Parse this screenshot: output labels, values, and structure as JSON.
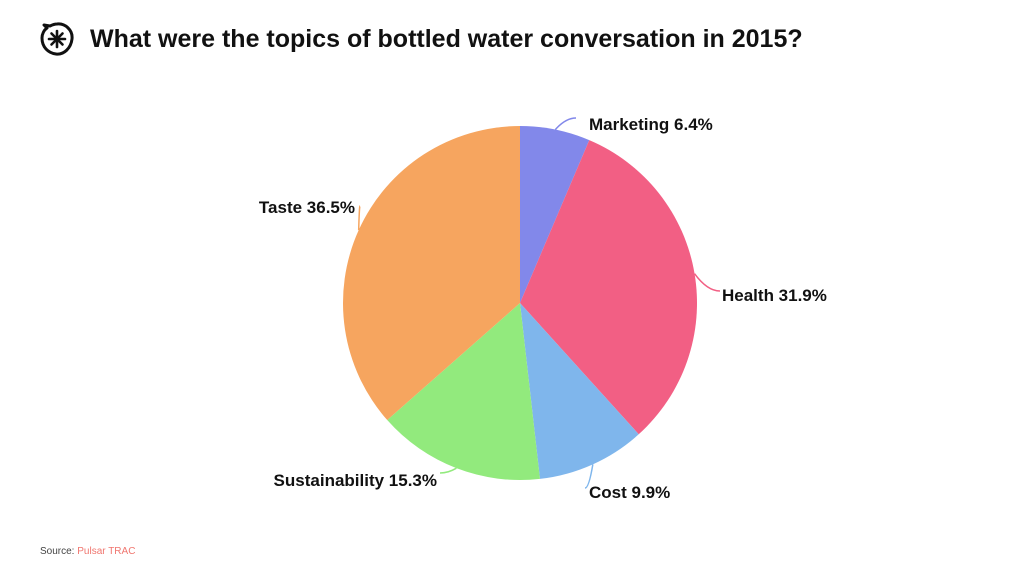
{
  "header": {
    "title": "What were the topics of bottled water conversation in 2015?",
    "logo_icon": "asterisk-badge-icon"
  },
  "footer": {
    "source_prefix": "Source: ",
    "source_name": "Pulsar TRAC"
  },
  "colors": {
    "marketing": "#8288ea",
    "health": "#f25f84",
    "cost": "#7fb6ec",
    "sustainability": "#92ea7d",
    "taste": "#f6a55f",
    "source_link": "#f0766f"
  },
  "chart_data": {
    "type": "pie",
    "title": "What were the topics of bottled water conversation in 2015?",
    "start": "12 o'clock, clockwise",
    "slices": [
      {
        "name": "Marketing",
        "value": 6.4,
        "label": "Marketing 6.4%",
        "color": "#8288ea"
      },
      {
        "name": "Health",
        "value": 31.9,
        "label": "Health 31.9%",
        "color": "#f25f84"
      },
      {
        "name": "Cost",
        "value": 9.9,
        "label": "Cost 9.9%",
        "color": "#7fb6ec"
      },
      {
        "name": "Sustainability",
        "value": 15.3,
        "label": "Sustainability 15.3%",
        "color": "#92ea7d"
      },
      {
        "name": "Taste",
        "value": 36.5,
        "label": "Taste 36.5%",
        "color": "#f6a55f"
      }
    ]
  }
}
